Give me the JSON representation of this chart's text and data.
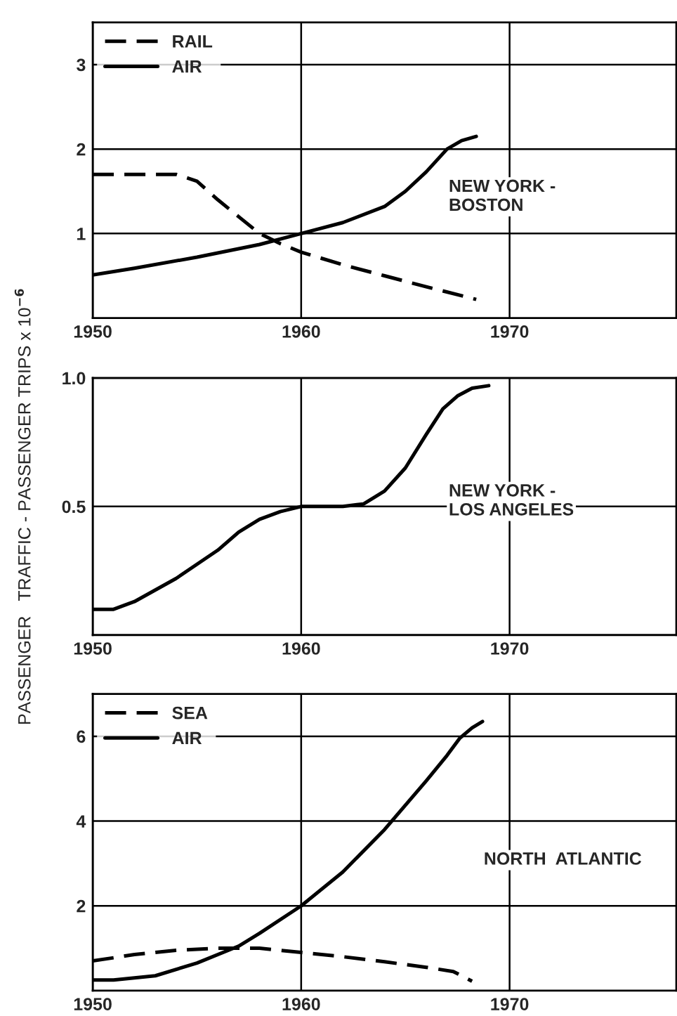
{
  "chart_data": [
    {
      "type": "line",
      "xlim": [
        1950,
        1978
      ],
      "xticks": [
        1950,
        1960,
        1970
      ],
      "ylim": [
        0,
        3.5
      ],
      "yticks": [
        1,
        2,
        3
      ],
      "grid": true,
      "legend": "top left",
      "annotations": [
        "NEW YORK -\nBOSTON"
      ],
      "series": [
        {
          "name": "RAIL",
          "color": "#000000",
          "line_style": "dashed",
          "x": [
            1950,
            1952,
            1954,
            1955,
            1956,
            1957,
            1958,
            1959,
            1960,
            1962,
            1964,
            1966,
            1968.4
          ],
          "values": [
            1.7,
            1.7,
            1.7,
            1.62,
            1.4,
            1.2,
            1.0,
            0.88,
            0.78,
            0.63,
            0.5,
            0.37,
            0.22
          ]
        },
        {
          "name": "AIR",
          "color": "#000000",
          "line_style": "solid",
          "x": [
            1950,
            1952,
            1955,
            1958,
            1960,
            1962,
            1964,
            1965,
            1966,
            1967,
            1967.7,
            1968.4
          ],
          "values": [
            0.51,
            0.59,
            0.72,
            0.87,
            1.0,
            1.13,
            1.32,
            1.5,
            1.73,
            2.0,
            2.1,
            2.15
          ]
        }
      ]
    },
    {
      "type": "line",
      "xlim": [
        1950,
        1978
      ],
      "xticks": [
        1950,
        1960,
        1970
      ],
      "ylim": [
        0,
        1.0
      ],
      "yticks": [
        0.5,
        {
          "value": 1.0,
          "label": "1.0"
        }
      ],
      "grid": true,
      "ylabel": "PASSENGER   TRAFFIC - PASSENGER TRIPS x 10$^{−6}$",
      "annotations": [
        "NEW YORK -\nLOS ANGELES"
      ],
      "series": [
        {
          "color": "#000000",
          "line_style": "solid",
          "x": [
            1950,
            1951,
            1952,
            1954,
            1956,
            1957,
            1958,
            1959,
            1960,
            1962,
            1963,
            1964,
            1965,
            1966,
            1966.8,
            1967.5,
            1968.2,
            1969
          ],
          "values": [
            0.1,
            0.1,
            0.13,
            0.22,
            0.33,
            0.4,
            0.45,
            0.48,
            0.5,
            0.5,
            0.51,
            0.56,
            0.65,
            0.78,
            0.88,
            0.93,
            0.96,
            0.97
          ]
        }
      ]
    },
    {
      "type": "line",
      "xlim": [
        1950,
        1978
      ],
      "xticks": [
        1950,
        1960,
        1970
      ],
      "ylim": [
        0,
        7
      ],
      "yticks": [
        2,
        4,
        6
      ],
      "grid": true,
      "legend": "top left",
      "annotations": [
        "NORTH  ATLANTIC"
      ],
      "series": [
        {
          "name": "SEA",
          "color": "#000000",
          "line_style": "dashed",
          "x": [
            1950,
            1952,
            1954,
            1956,
            1958,
            1960,
            1962,
            1964,
            1966,
            1967.3,
            1967.7,
            1968.2
          ],
          "values": [
            0.7,
            0.85,
            0.95,
            1.0,
            1.0,
            0.9,
            0.8,
            0.68,
            0.55,
            0.45,
            0.35,
            0.22
          ]
        },
        {
          "name": "AIR",
          "color": "#000000",
          "line_style": "solid",
          "x": [
            1950,
            1951,
            1953,
            1955,
            1957,
            1958,
            1960,
            1962,
            1964,
            1966,
            1967,
            1967.6,
            1968.2,
            1968.7
          ],
          "values": [
            0.25,
            0.25,
            0.35,
            0.65,
            1.05,
            1.35,
            2.0,
            2.8,
            3.8,
            4.95,
            5.55,
            5.95,
            6.2,
            6.35
          ]
        }
      ]
    }
  ]
}
